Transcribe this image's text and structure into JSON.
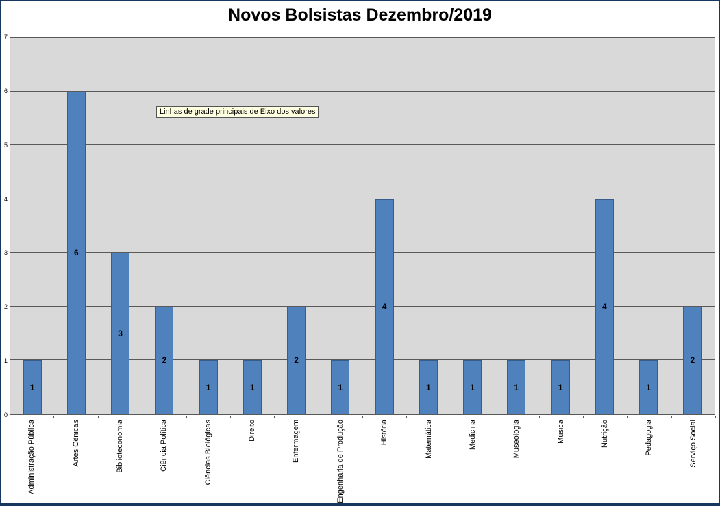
{
  "title": "Novos Bolsistas Dezembro/2019",
  "tooltip": {
    "text": "Linhas de grade principais de Eixo dos valores"
  },
  "colors": {
    "bar_fill": "#4F81BD",
    "bar_border": "#385D8A",
    "plot_bg": "#D9D9D9",
    "grid": "#595959",
    "outer_border": "#17375E"
  },
  "chart_data": {
    "type": "bar",
    "title": "Novos Bolsistas Dezembro/2019",
    "categories": [
      "Administração Pública",
      "Artes Cênicas",
      "Biblioteconomia",
      "Ciência Política",
      "Ciências Biológicas",
      "Direito",
      "Enfermagem",
      "Engenharia de Produção",
      "História",
      "Matemática",
      "Medicina",
      "Museologia",
      "Música",
      "Nutrição",
      "Pedagogia",
      "Serviço Social"
    ],
    "values": [
      1,
      6,
      3,
      2,
      1,
      1,
      2,
      1,
      4,
      1,
      1,
      1,
      1,
      4,
      1,
      2
    ],
    "xlabel": "",
    "ylabel": "",
    "ylim": [
      0,
      7
    ],
    "yticks": [
      0,
      1,
      2,
      3,
      4,
      5,
      6,
      7
    ],
    "grid": true,
    "legend_position": "none",
    "data_labels": "center"
  }
}
